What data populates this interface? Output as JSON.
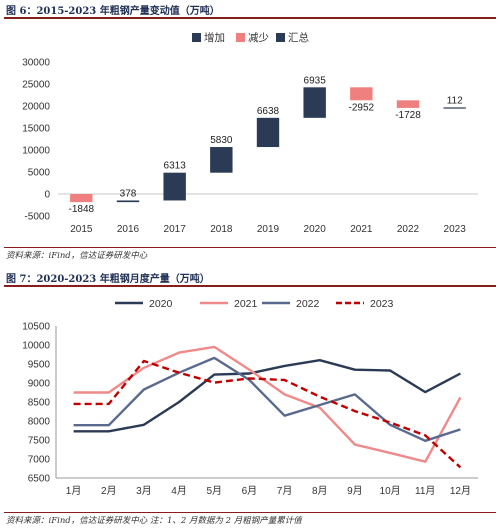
{
  "figure1": {
    "title": "图 6：2015-2023 年粗钢产量变动值（万吨）",
    "source": "资料来源：iFind，信达证券研发中心"
  },
  "figure2": {
    "title": "图 7：2020-2023 年粗钢月度产量（万吨）",
    "source": "资料来源：iFind，信达证券研发中心 注：1、2 月数据为 2 月粗钢产量累计值"
  },
  "chart_data": [
    {
      "type": "bar",
      "subtype": "waterfall",
      "categories": [
        "2015",
        "2016",
        "2017",
        "2018",
        "2019",
        "2020",
        "2021",
        "2022",
        "2023"
      ],
      "values": [
        -1848,
        378,
        6313,
        5830,
        6638,
        6935,
        -2952,
        -1728,
        112
      ],
      "value_labels": [
        "-1848",
        "378",
        "6313",
        "5830",
        "6638",
        "6935",
        "-2952",
        "-1728",
        "112"
      ],
      "legend": [
        "增加",
        "减少",
        "汇总"
      ],
      "legend_position": "top",
      "ylim": [
        -5000,
        30000
      ],
      "yticks": [
        "-5000",
        "0",
        "5000",
        "10000",
        "15000",
        "20000",
        "25000",
        "30000"
      ],
      "grid": false,
      "colors": {
        "increase": "#2b3a55",
        "decrease": "#f08080",
        "total": "#8c8c8c"
      }
    },
    {
      "type": "line",
      "categories": [
        "1月",
        "2月",
        "3月",
        "4月",
        "5月",
        "6月",
        "7月",
        "8月",
        "9月",
        "10月",
        "11月",
        "12月"
      ],
      "series": [
        {
          "name": "2020",
          "color": "#2b3a55",
          "dash": false,
          "values": [
            7730,
            7730,
            7900,
            8500,
            9220,
            9250,
            9450,
            9600,
            9350,
            9330,
            8760,
            9250
          ]
        },
        {
          "name": "2021",
          "color": "#f08a8a",
          "dash": false,
          "values": [
            8750,
            8750,
            9400,
            9800,
            9950,
            9350,
            8700,
            8350,
            7380,
            7160,
            6930,
            8620
          ]
        },
        {
          "name": "2022",
          "color": "#5a6a8f",
          "dash": false,
          "values": [
            7890,
            7890,
            8830,
            9270,
            9660,
            9080,
            8140,
            8420,
            8700,
            7900,
            7480,
            7780
          ]
        },
        {
          "name": "2023",
          "color": "#c00000",
          "dash": true,
          "values": [
            8450,
            8450,
            9580,
            9270,
            9010,
            9120,
            9080,
            8640,
            8260,
            7960,
            7620,
            6780
          ]
        }
      ],
      "legend_position": "top",
      "ylim": [
        6500,
        10500
      ],
      "yticks": [
        "6500",
        "7000",
        "7500",
        "8000",
        "8500",
        "9000",
        "9500",
        "10000",
        "10500"
      ],
      "grid": false
    }
  ]
}
